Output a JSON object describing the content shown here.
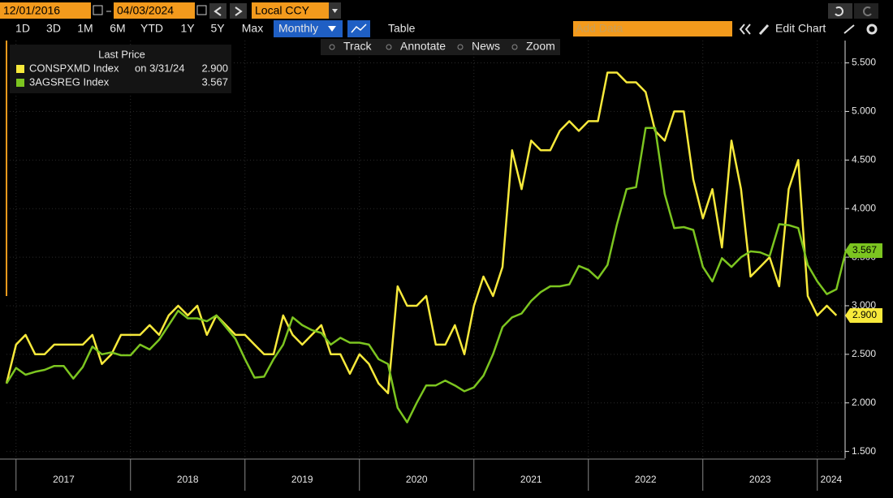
{
  "toolbar": {
    "date_start": "12/01/2016",
    "date_end": "04/03/2024",
    "currency": "Local CCY",
    "periods": [
      "1D",
      "3D",
      "1M",
      "6M",
      "YTD",
      "1Y",
      "5Y",
      "Max"
    ],
    "frequency": "Monthly",
    "table": "Table",
    "add_data": "Add Data",
    "edit_chart": "Edit Chart",
    "tools": [
      "Track",
      "Annotate",
      "News",
      "Zoom"
    ]
  },
  "chart_data": {
    "type": "line",
    "legend_title": "Last Price",
    "legend": "top-left",
    "grid": true,
    "x": [
      "2016-12",
      "2017-01",
      "2017-02",
      "2017-03",
      "2017-04",
      "2017-05",
      "2017-06",
      "2017-07",
      "2017-08",
      "2017-09",
      "2017-10",
      "2017-11",
      "2017-12",
      "2018-01",
      "2018-02",
      "2018-03",
      "2018-04",
      "2018-05",
      "2018-06",
      "2018-07",
      "2018-08",
      "2018-09",
      "2018-10",
      "2018-11",
      "2018-12",
      "2019-01",
      "2019-02",
      "2019-03",
      "2019-04",
      "2019-05",
      "2019-06",
      "2019-07",
      "2019-08",
      "2019-09",
      "2019-10",
      "2019-11",
      "2019-12",
      "2020-01",
      "2020-02",
      "2020-03",
      "2020-04",
      "2020-05",
      "2020-06",
      "2020-07",
      "2020-08",
      "2020-09",
      "2020-10",
      "2020-11",
      "2020-12",
      "2021-01",
      "2021-02",
      "2021-03",
      "2021-04",
      "2021-05",
      "2021-06",
      "2021-07",
      "2021-08",
      "2021-09",
      "2021-10",
      "2021-11",
      "2021-12",
      "2022-01",
      "2022-02",
      "2022-03",
      "2022-04",
      "2022-05",
      "2022-06",
      "2022-07",
      "2022-08",
      "2022-09",
      "2022-10",
      "2022-11",
      "2022-12",
      "2023-01",
      "2023-02",
      "2023-03",
      "2023-04",
      "2023-05",
      "2023-06",
      "2023-07",
      "2023-08",
      "2023-09",
      "2023-10",
      "2023-11",
      "2023-12",
      "2024-01",
      "2024-02",
      "2024-03",
      "2024-04"
    ],
    "xticks": [
      {
        "value": "2017-01",
        "label": "2017"
      },
      {
        "value": "2018-01",
        "label": "2018"
      },
      {
        "value": "2019-01",
        "label": "2019"
      },
      {
        "value": "2020-01",
        "label": "2020"
      },
      {
        "value": "2021-01",
        "label": "2021"
      },
      {
        "value": "2022-01",
        "label": "2022"
      },
      {
        "value": "2023-01",
        "label": "2023"
      },
      {
        "value": "2024-01",
        "label": "2024"
      }
    ],
    "ylim": [
      1.43,
      5.73
    ],
    "yticks": [
      {
        "value": 1.5,
        "label": "1.500"
      },
      {
        "value": 2,
        "label": "2.000"
      },
      {
        "value": 2.5,
        "label": "2.500"
      },
      {
        "value": 3,
        "label": "3.000"
      },
      {
        "value": 3.5,
        "label": "3.500"
      },
      {
        "value": 4,
        "label": "4.000"
      },
      {
        "value": 4.5,
        "label": "4.500"
      },
      {
        "value": 5,
        "label": "5.000"
      },
      {
        "value": 5.5,
        "label": "5.500"
      }
    ],
    "series": [
      {
        "name": "CONSPXMD Index",
        "legend_note": "on 3/31/24",
        "color": "#f7e93b",
        "values": [
          2.2,
          2.6,
          2.7,
          2.5,
          2.5,
          2.6,
          2.6,
          2.6,
          2.6,
          2.7,
          2.4,
          2.5,
          2.7,
          2.7,
          2.7,
          2.8,
          2.7,
          2.9,
          3.0,
          2.9,
          3.0,
          2.7,
          2.9,
          2.8,
          2.7,
          2.7,
          2.6,
          2.5,
          2.5,
          2.9,
          2.7,
          2.6,
          2.7,
          2.8,
          2.5,
          2.5,
          2.3,
          2.5,
          2.4,
          2.2,
          2.1,
          3.2,
          3.0,
          3.0,
          3.1,
          2.6,
          2.6,
          2.8,
          2.5,
          3.0,
          3.3,
          3.1,
          3.4,
          4.6,
          4.2,
          4.7,
          4.6,
          4.6,
          4.8,
          4.9,
          4.8,
          4.9,
          4.9,
          5.4,
          5.4,
          5.3,
          5.3,
          5.2,
          4.8,
          4.7,
          5.0,
          5.0,
          4.3,
          3.9,
          4.2,
          3.6,
          4.7,
          4.2,
          3.3,
          3.4,
          3.5,
          3.2,
          4.2,
          4.5,
          3.1,
          2.9,
          3.0,
          2.9,
          null
        ],
        "value_labels": [
          null,
          null,
          null,
          null,
          null,
          null,
          null,
          null,
          null,
          null,
          null,
          null,
          null,
          null,
          null,
          null,
          null,
          null,
          null,
          null,
          null,
          null,
          null,
          null,
          null,
          null,
          null,
          null,
          null,
          null,
          null,
          null,
          null,
          null,
          null,
          null,
          null,
          null,
          null,
          null,
          null,
          null,
          null,
          null,
          null,
          null,
          null,
          null,
          null,
          null,
          null,
          null,
          null,
          null,
          null,
          null,
          null,
          null,
          null,
          null,
          null,
          null,
          null,
          null,
          null,
          null,
          null,
          null,
          null,
          null,
          null,
          null,
          null,
          null,
          null,
          null,
          null,
          null,
          null,
          null,
          null,
          null,
          null,
          null,
          null,
          null,
          null,
          "2.900",
          null
        ]
      },
      {
        "name": "3AGSREG Index",
        "color": "#7cc520",
        "values": [
          2.2,
          2.36,
          2.29,
          2.32,
          2.34,
          2.38,
          2.38,
          2.25,
          2.37,
          2.58,
          2.5,
          2.52,
          2.49,
          2.49,
          2.6,
          2.55,
          2.65,
          2.8,
          2.95,
          2.87,
          2.87,
          2.84,
          2.9,
          2.78,
          2.66,
          2.45,
          2.26,
          2.27,
          2.45,
          2.6,
          2.88,
          2.8,
          2.75,
          2.72,
          2.6,
          2.67,
          2.62,
          2.62,
          2.6,
          2.45,
          2.4,
          1.95,
          1.8,
          2.0,
          2.18,
          2.18,
          2.23,
          2.18,
          2.12,
          2.16,
          2.28,
          2.5,
          2.78,
          2.88,
          2.92,
          3.05,
          3.14,
          3.2,
          3.2,
          3.22,
          3.41,
          3.37,
          3.28,
          3.42,
          3.84,
          4.2,
          4.22,
          4.83,
          4.83,
          4.15,
          3.8,
          3.81,
          3.78,
          3.4,
          3.25,
          3.49,
          3.4,
          3.5,
          3.56,
          3.55,
          3.51,
          3.84,
          3.83,
          3.8,
          3.42,
          3.25,
          3.12,
          3.17,
          3.567
        ],
        "value_labels": [
          null,
          null,
          null,
          null,
          null,
          null,
          null,
          null,
          null,
          null,
          null,
          null,
          null,
          null,
          null,
          null,
          null,
          null,
          null,
          null,
          null,
          null,
          null,
          null,
          null,
          null,
          null,
          null,
          null,
          null,
          null,
          null,
          null,
          null,
          null,
          null,
          null,
          null,
          null,
          null,
          null,
          null,
          null,
          null,
          null,
          null,
          null,
          null,
          null,
          null,
          null,
          null,
          null,
          null,
          null,
          null,
          null,
          null,
          null,
          null,
          null,
          null,
          null,
          null,
          null,
          null,
          null,
          null,
          null,
          null,
          null,
          null,
          null,
          null,
          null,
          null,
          null,
          null,
          null,
          null,
          null,
          null,
          null,
          null,
          null,
          null,
          null,
          null,
          "3.567"
        ]
      }
    ]
  }
}
